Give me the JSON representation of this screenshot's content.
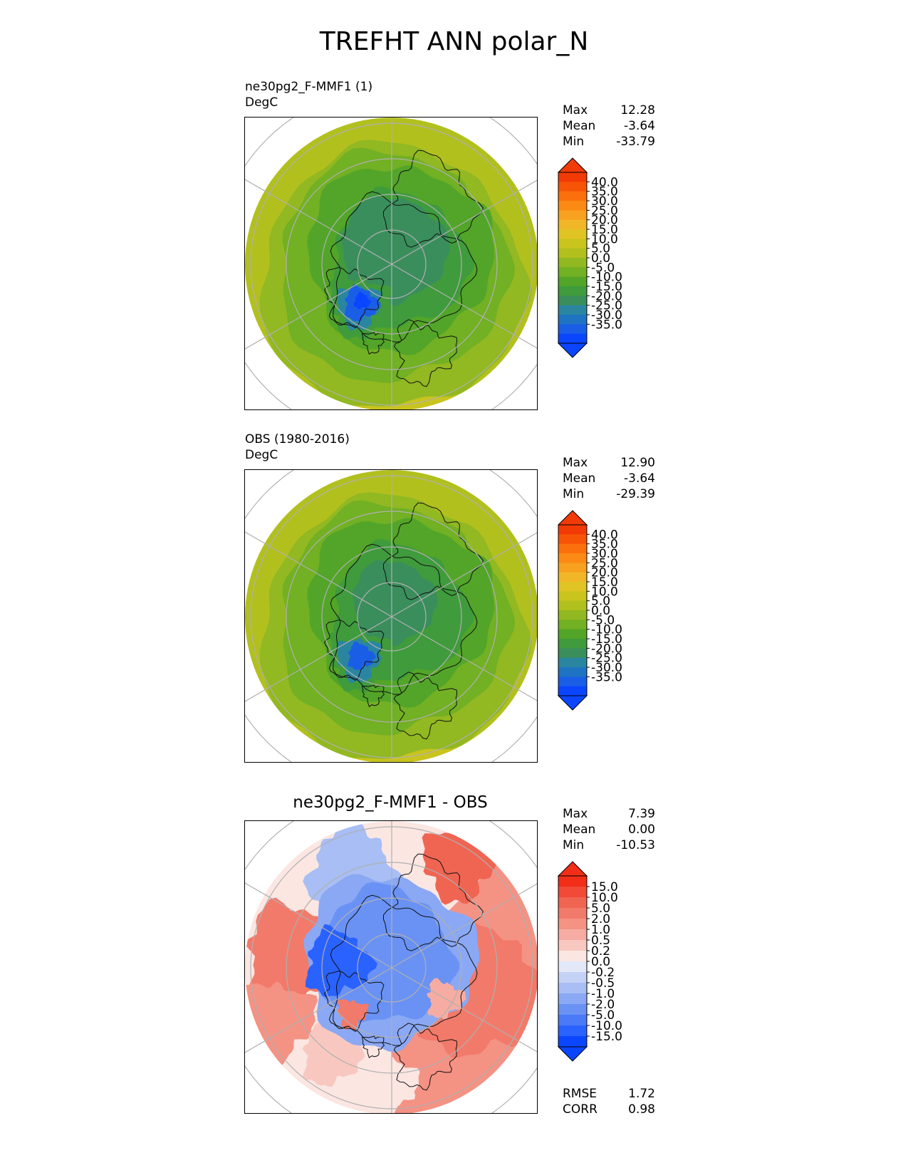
{
  "title": "TREFHT ANN polar_N",
  "colors": {
    "abs": [
      "#0a46ff",
      "#1a5ee6",
      "#1e74c2",
      "#2a86a0",
      "#3a8e5c",
      "#3f9b3c",
      "#52a528",
      "#72b024",
      "#92b822",
      "#b2c01e",
      "#c9c41e",
      "#e0c424",
      "#f0b628",
      "#f8a020",
      "#fb8a14",
      "#fb700c",
      "#f75408",
      "#f23a06"
    ],
    "diff": [
      "#0a46ff",
      "#2a62ff",
      "#4a7af8",
      "#6a92f4",
      "#8aa8f4",
      "#a8bef4",
      "#c4d2f6",
      "#e2e8f8",
      "#fbe6e2",
      "#f8c8c0",
      "#f6aca2",
      "#f49284",
      "#f27a6a",
      "#f06452",
      "#f24a36",
      "#f22e18"
    ]
  },
  "panels": [
    {
      "name": "test",
      "label_line1": "ne30pg2_F-MMF1 (1)",
      "label_line2": "DegC",
      "stats": {
        "max_label": "Max",
        "max": "12.28",
        "mean_label": "Mean",
        "mean": "-3.64",
        "min_label": "Min",
        "min": "-33.79"
      },
      "colorbar_ticks": [
        "40.0",
        "35.0",
        "30.0",
        "25.0",
        "20.0",
        "15.0",
        "10.0",
        "5.0",
        "0.0",
        "-5.0",
        "-10.0",
        "-15.0",
        "-20.0",
        "-25.0",
        "-30.0",
        "-35.0"
      ]
    },
    {
      "name": "reference",
      "label_line1": "OBS (1980-2016)",
      "label_line2": "DegC",
      "stats": {
        "max_label": "Max",
        "max": "12.90",
        "mean_label": "Mean",
        "mean": "-3.64",
        "min_label": "Min",
        "min": "-29.39"
      },
      "colorbar_ticks": [
        "40.0",
        "35.0",
        "30.0",
        "25.0",
        "20.0",
        "15.0",
        "10.0",
        "5.0",
        "0.0",
        "-5.0",
        "-10.0",
        "-15.0",
        "-20.0",
        "-25.0",
        "-30.0",
        "-35.0"
      ]
    },
    {
      "name": "difference",
      "label_center": "ne30pg2_F-MMF1 - OBS",
      "stats": {
        "max_label": "Max",
        "max": "7.39",
        "mean_label": "Mean",
        "mean": "0.00",
        "min_label": "Min",
        "min": "-10.53"
      },
      "colorbar_ticks": [
        "15.0",
        "10.0",
        "5.0",
        "2.0",
        "1.0",
        "0.5",
        "0.2",
        "0.0",
        "-0.2",
        "-0.5",
        "-1.0",
        "-2.0",
        "-5.0",
        "-10.0",
        "-15.0"
      ],
      "metrics": {
        "rmse_label": "RMSE",
        "rmse": "1.72",
        "corr_label": "CORR",
        "corr": "0.98"
      }
    }
  ],
  "chart_data": [
    {
      "type": "heatmap",
      "projection": "north polar stereographic",
      "title": "ne30pg2_F-MMF1 (1)",
      "units": "DegC",
      "variable": "TREFHT",
      "season": "ANN",
      "max": 12.28,
      "mean": -3.64,
      "min": -33.79,
      "levels": [
        -35,
        -30,
        -25,
        -20,
        -15,
        -10,
        -5,
        0,
        5,
        10,
        15,
        20,
        25,
        30,
        35,
        40
      ]
    },
    {
      "type": "heatmap",
      "projection": "north polar stereographic",
      "title": "OBS (1980-2016)",
      "units": "DegC",
      "max": 12.9,
      "mean": -3.64,
      "min": -29.39,
      "levels": [
        -35,
        -30,
        -25,
        -20,
        -15,
        -10,
        -5,
        0,
        5,
        10,
        15,
        20,
        25,
        30,
        35,
        40
      ]
    },
    {
      "type": "heatmap",
      "projection": "north polar stereographic",
      "title": "ne30pg2_F-MMF1 - OBS",
      "max": 7.39,
      "mean": 0.0,
      "min": -10.53,
      "rmse": 1.72,
      "corr": 0.98,
      "levels": [
        -15,
        -10,
        -5,
        -2,
        -1,
        -0.5,
        -0.2,
        0,
        0.2,
        0.5,
        1,
        2,
        5,
        10,
        15
      ]
    }
  ]
}
